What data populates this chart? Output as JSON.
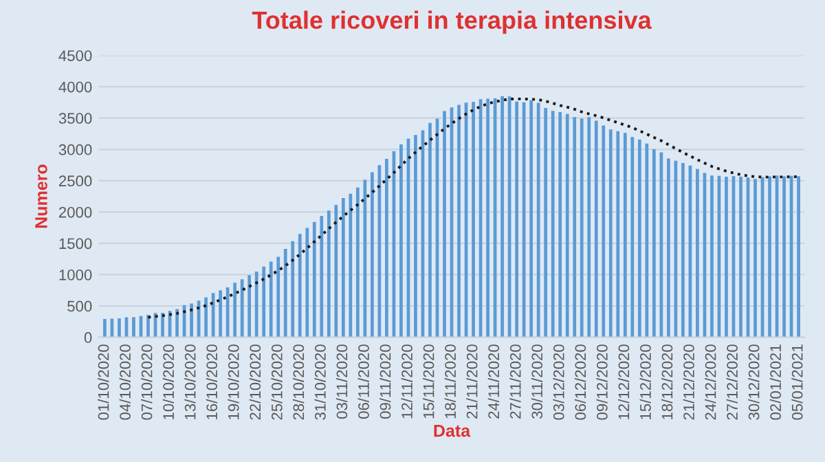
{
  "chart_data": {
    "type": "bar",
    "title": "Totale ricoveri in terapia intensiva",
    "xlabel": "Data",
    "ylabel": "Numero",
    "categories": [
      "01/10/2020",
      null,
      null,
      "04/10/2020",
      null,
      null,
      "07/10/2020",
      null,
      null,
      "10/10/2020",
      null,
      null,
      "13/10/2020",
      null,
      null,
      "16/10/2020",
      null,
      null,
      "19/10/2020",
      null,
      null,
      "22/10/2020",
      null,
      null,
      "25/10/2020",
      null,
      null,
      "28/10/2020",
      null,
      null,
      "31/10/2020",
      null,
      null,
      "03/11/2020",
      null,
      null,
      "06/11/2020",
      null,
      null,
      "09/11/2020",
      null,
      null,
      "12/11/2020",
      null,
      null,
      "15/11/2020",
      null,
      null,
      "18/11/2020",
      null,
      null,
      "21/11/2020",
      null,
      null,
      "24/11/2020",
      null,
      null,
      "27/11/2020",
      null,
      null,
      "30/11/2020",
      null,
      null,
      "03/12/2020",
      null,
      null,
      "06/12/2020",
      null,
      null,
      "09/12/2020",
      null,
      null,
      "12/12/2020",
      null,
      null,
      "15/12/2020",
      null,
      null,
      "18/12/2020",
      null,
      null,
      "21/12/2020",
      null,
      null,
      "24/12/2020",
      null,
      null,
      "27/12/2020",
      null,
      null,
      "30/12/2020",
      null,
      null,
      "02/01/2021",
      null,
      null,
      "05/01/2021"
    ],
    "series": [
      {
        "color": "#5b9bd5",
        "values": [
          291,
          297,
          303,
          319,
          323,
          337,
          358,
          387,
          390,
          420,
          452,
          514,
          539,
          586,
          638,
          705,
          750,
          797,
          870,
          926,
          992,
          1049,
          1128,
          1208,
          1284,
          1411,
          1536,
          1651,
          1746,
          1843,
          1939,
          2022,
          2115,
          2225,
          2292,
          2391,
          2515,
          2634,
          2749,
          2849,
          2971,
          3081,
          3170,
          3230,
          3306,
          3422,
          3492,
          3612,
          3670,
          3712,
          3748,
          3758,
          3801,
          3810,
          3816,
          3848,
          3846,
          3762,
          3753,
          3782,
          3744,
          3663,
          3616,
          3597,
          3567,
          3517,
          3492,
          3517,
          3459,
          3382,
          3320,
          3291,
          3265,
          3199,
          3158,
          3095,
          3003,
          2953,
          2855,
          2819,
          2784,
          2743,
          2687,
          2624,
          2582,
          2579,
          2565,
          2571,
          2565,
          2549,
          2528,
          2555,
          2569,
          2583,
          2569,
          2579,
          2571
        ]
      },
      {
        "type": "line",
        "color": "#1a1a1a",
        "line_style": "dotted",
        "values": [
          null,
          null,
          null,
          null,
          null,
          null,
          318,
          332,
          345,
          362,
          381,
          408,
          437,
          470,
          506,
          551,
          598,
          647,
          698,
          753,
          811,
          870,
          930,
          996,
          1065,
          1143,
          1230,
          1324,
          1423,
          1526,
          1630,
          1735,
          1836,
          1934,
          2026,
          2118,
          2214,
          2313,
          2417,
          2522,
          2629,
          2741,
          2853,
          2955,
          3051,
          3147,
          3239,
          3330,
          3415,
          3492,
          3566,
          3631,
          3685,
          3730,
          3759,
          3785,
          3804,
          3806,
          3805,
          3802,
          3793,
          3771,
          3738,
          3702,
          3675,
          3641,
          3599,
          3567,
          3538,
          3504,
          3465,
          3425,
          3389,
          3348,
          3296,
          3244,
          3190,
          3138,
          3075,
          3012,
          2952,
          2893,
          2835,
          2781,
          2728,
          2688,
          2652,
          2622,
          2596,
          2576,
          2563,
          2559,
          2557,
          2560,
          2560,
          2562,
          2565
        ]
      }
    ],
    "ylim": [
      0,
      4500
    ],
    "yticks": [
      0,
      500,
      1000,
      1500,
      2000,
      2500,
      3000,
      3500,
      4000,
      4500
    ],
    "grid": "y",
    "legend": false
  }
}
